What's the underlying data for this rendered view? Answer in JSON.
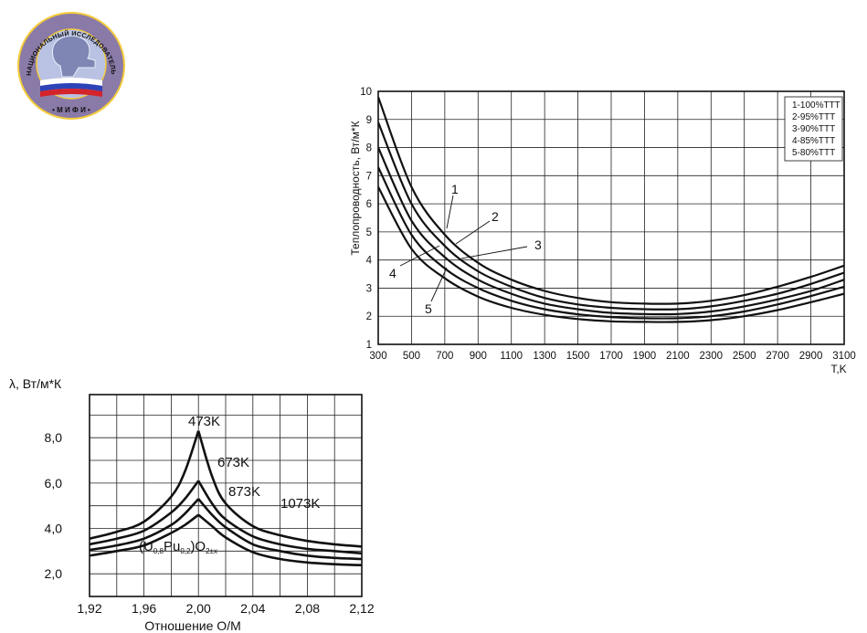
{
  "logo": {
    "ring_text": "НАЦИОНАЛЬНЫЙ ИССЛЕДОВАТЕЛЬСКИЙ ЯДЕРНЫЙ УНИВЕРСИТЕТ",
    "bottom_text": "• М И Ф И •",
    "colors": {
      "ring": "#8a7aa8",
      "inner": "#b9c2e3",
      "outline": "#f5cc3a",
      "flag_white": "#ffffff",
      "flag_blue": "#2d43b8",
      "flag_red": "#d4232a"
    }
  },
  "chart_data": [
    {
      "type": "line",
      "xlabel": "T,K",
      "ylabel": "Теплопроводность, Вт/м*К",
      "xlim": [
        300,
        3100
      ],
      "ylim": [
        1,
        10
      ],
      "xticks": [
        "300",
        "500",
        "700",
        "900",
        "1100",
        "1300",
        "1500",
        "1700",
        "1900",
        "2100",
        "2300",
        "2500",
        "2700",
        "2900",
        "3100"
      ],
      "yticks": [
        "1",
        "2",
        "3",
        "4",
        "5",
        "6",
        "7",
        "8",
        "9",
        "10"
      ],
      "grid": true,
      "legend_position": "top-right",
      "legend": [
        "1-100%ТТТ",
        "2-95%ТТТ",
        "3-90%ТТТ",
        "4-85%ТТТ",
        "5-80%ТТТ"
      ],
      "curve_labels": [
        "1",
        "2",
        "3",
        "4",
        "5"
      ],
      "x": [
        300,
        500,
        700,
        900,
        1100,
        1300,
        1500,
        1700,
        1900,
        2100,
        2300,
        2500,
        2700,
        2900,
        3100
      ],
      "series": [
        {
          "values": [
            9.8,
            6.6,
            4.9,
            3.9,
            3.3,
            2.9,
            2.65,
            2.5,
            2.45,
            2.45,
            2.55,
            2.75,
            3.05,
            3.4,
            3.8
          ]
        },
        {
          "values": [
            8.9,
            6.0,
            4.5,
            3.6,
            3.05,
            2.65,
            2.42,
            2.3,
            2.25,
            2.25,
            2.35,
            2.55,
            2.8,
            3.15,
            3.55
          ]
        },
        {
          "values": [
            8.0,
            5.4,
            4.1,
            3.3,
            2.8,
            2.45,
            2.25,
            2.12,
            2.08,
            2.08,
            2.17,
            2.35,
            2.6,
            2.9,
            3.3
          ]
        },
        {
          "values": [
            7.3,
            4.9,
            3.7,
            3.0,
            2.55,
            2.25,
            2.07,
            1.97,
            1.93,
            1.93,
            2.0,
            2.17,
            2.42,
            2.72,
            3.05
          ]
        },
        {
          "values": [
            6.6,
            4.4,
            3.35,
            2.7,
            2.3,
            2.05,
            1.9,
            1.82,
            1.8,
            1.8,
            1.86,
            2.0,
            2.22,
            2.5,
            2.8
          ]
        }
      ]
    },
    {
      "type": "line",
      "xlabel": "Отношение О/М",
      "ylabel": "λ, Вт/м*К",
      "xlim": [
        1.92,
        2.12
      ],
      "ylim": [
        1.0,
        9.9
      ],
      "xticks": [
        "1,92",
        "1,96",
        "2,00",
        "2,04",
        "2,08",
        "2,12"
      ],
      "yticks": [
        "2,0",
        "4,0",
        "6,0",
        "8,0"
      ],
      "ytick_values": [
        2.0,
        4.0,
        6.0,
        8.0
      ],
      "grid": true,
      "annotation": {
        "base": "(U",
        "sub1": "0,8",
        "mid": "Pu",
        "sub2": "0,2",
        "close": ")O",
        "sub3": "2±x"
      },
      "x": [
        1.92,
        1.94,
        1.96,
        1.98,
        1.99,
        2.0,
        2.01,
        2.02,
        2.04,
        2.06,
        2.08,
        2.1,
        2.12
      ],
      "series": [
        {
          "name": "473K",
          "values": [
            3.55,
            3.85,
            4.3,
            5.4,
            6.5,
            8.3,
            6.3,
            5.1,
            4.1,
            3.7,
            3.45,
            3.3,
            3.2
          ]
        },
        {
          "name": "673K",
          "values": [
            3.3,
            3.55,
            3.9,
            4.7,
            5.3,
            6.1,
            5.1,
            4.4,
            3.65,
            3.3,
            3.1,
            3.0,
            2.9
          ]
        },
        {
          "name": "873K",
          "values": [
            3.05,
            3.25,
            3.55,
            4.15,
            4.65,
            5.3,
            4.6,
            4.05,
            3.3,
            3.0,
            2.8,
            2.7,
            2.65
          ]
        },
        {
          "name": "1073K",
          "values": [
            2.8,
            3.0,
            3.25,
            3.8,
            4.15,
            4.6,
            4.1,
            3.6,
            2.95,
            2.65,
            2.5,
            2.42,
            2.38
          ]
        }
      ]
    }
  ]
}
